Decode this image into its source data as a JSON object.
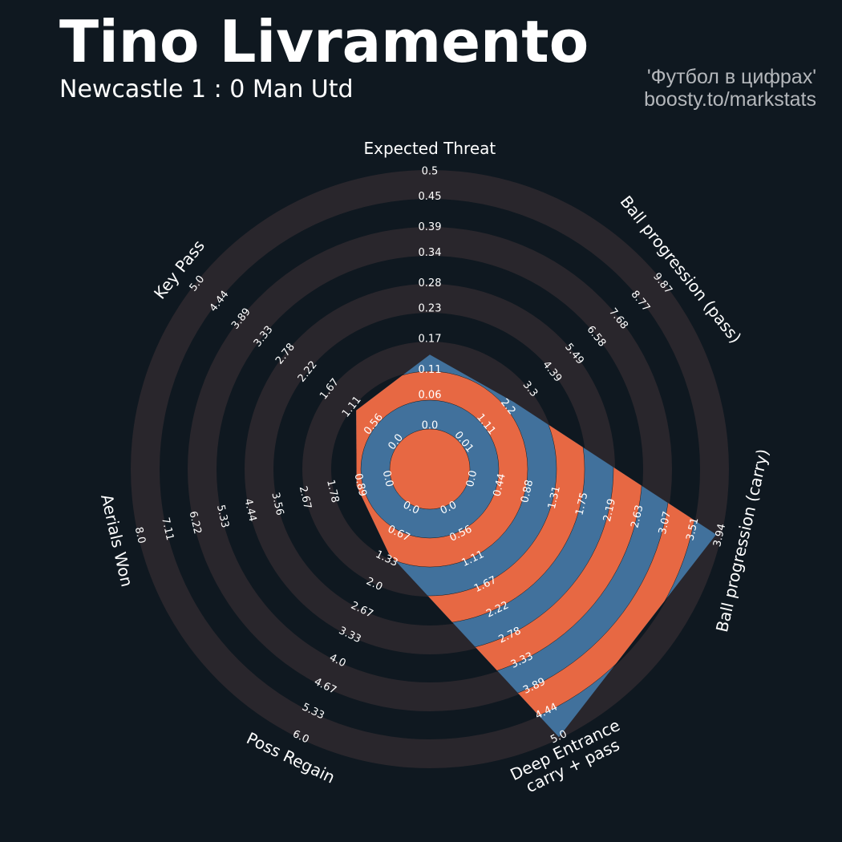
{
  "chart_data": {
    "type": "radar",
    "title": "Tino Livramento",
    "subtitle": "Newcastle 1 : 0 Man Utd",
    "credits": [
      "'Футбол в цифрах'",
      "boosty.to/markstats"
    ],
    "categories": [
      "Expected Threat",
      "Ball progression (pass)",
      "Ball progression (carry)",
      "Deep Entrance\ncarry + pass",
      "Poss Regain",
      "Aerials Won",
      "Key Pass"
    ],
    "values": [
      0.14,
      2.5,
      3.88,
      5.0,
      1.2,
      1.0,
      1.0
    ],
    "axes": [
      {
        "lim": [
          0,
          0.5
        ],
        "ticks": [
          {
            "value": 0,
            "label": "0.0"
          },
          0.06,
          0.11,
          0.17,
          0.23,
          0.28,
          0.34,
          0.39,
          0.45,
          0.5
        ]
      },
      {
        "lim": [
          0.01,
          9.87
        ],
        "ticks": [
          0.01,
          1.11,
          2.2,
          3.3,
          4.39,
          5.49,
          6.58,
          7.68,
          8.77,
          9.87
        ]
      },
      {
        "lim": [
          0,
          3.94
        ],
        "ticks": [
          {
            "value": 0,
            "label": "0.0"
          },
          0.44,
          0.88,
          1.31,
          1.75,
          2.19,
          2.63,
          3.07,
          3.51,
          3.94
        ]
      },
      {
        "lim": [
          0,
          5
        ],
        "ticks": [
          {
            "value": 0,
            "label": "0.0"
          },
          0.56,
          1.11,
          1.67,
          2.22,
          2.78,
          3.33,
          3.89,
          4.44,
          {
            "value": 5,
            "label": "5.0"
          }
        ]
      },
      {
        "lim": [
          0,
          6
        ],
        "ticks": [
          {
            "value": 0,
            "label": "0.0"
          },
          0.67,
          1.33,
          {
            "value": 2,
            "label": "2.0"
          },
          2.67,
          3.33,
          {
            "value": 4,
            "label": "4.0"
          },
          4.67,
          5.33,
          {
            "value": 6,
            "label": "6.0"
          }
        ]
      },
      {
        "lim": [
          0,
          8
        ],
        "ticks": [
          {
            "value": 0,
            "label": "0.0"
          },
          0.89,
          1.78,
          2.67,
          3.56,
          4.44,
          5.33,
          6.22,
          7.11,
          {
            "value": 8,
            "label": "8.0"
          }
        ]
      },
      {
        "lim": [
          0,
          5
        ],
        "ticks": [
          {
            "value": 0,
            "label": "0.0"
          },
          0.56,
          1.11,
          1.67,
          2.22,
          2.78,
          3.33,
          3.89,
          4.44,
          {
            "value": 5,
            "label": "5.0"
          }
        ]
      }
    ],
    "colors": {
      "polygon": "#41719c",
      "rings": "#e76843",
      "background_rings": "#29262c"
    }
  }
}
